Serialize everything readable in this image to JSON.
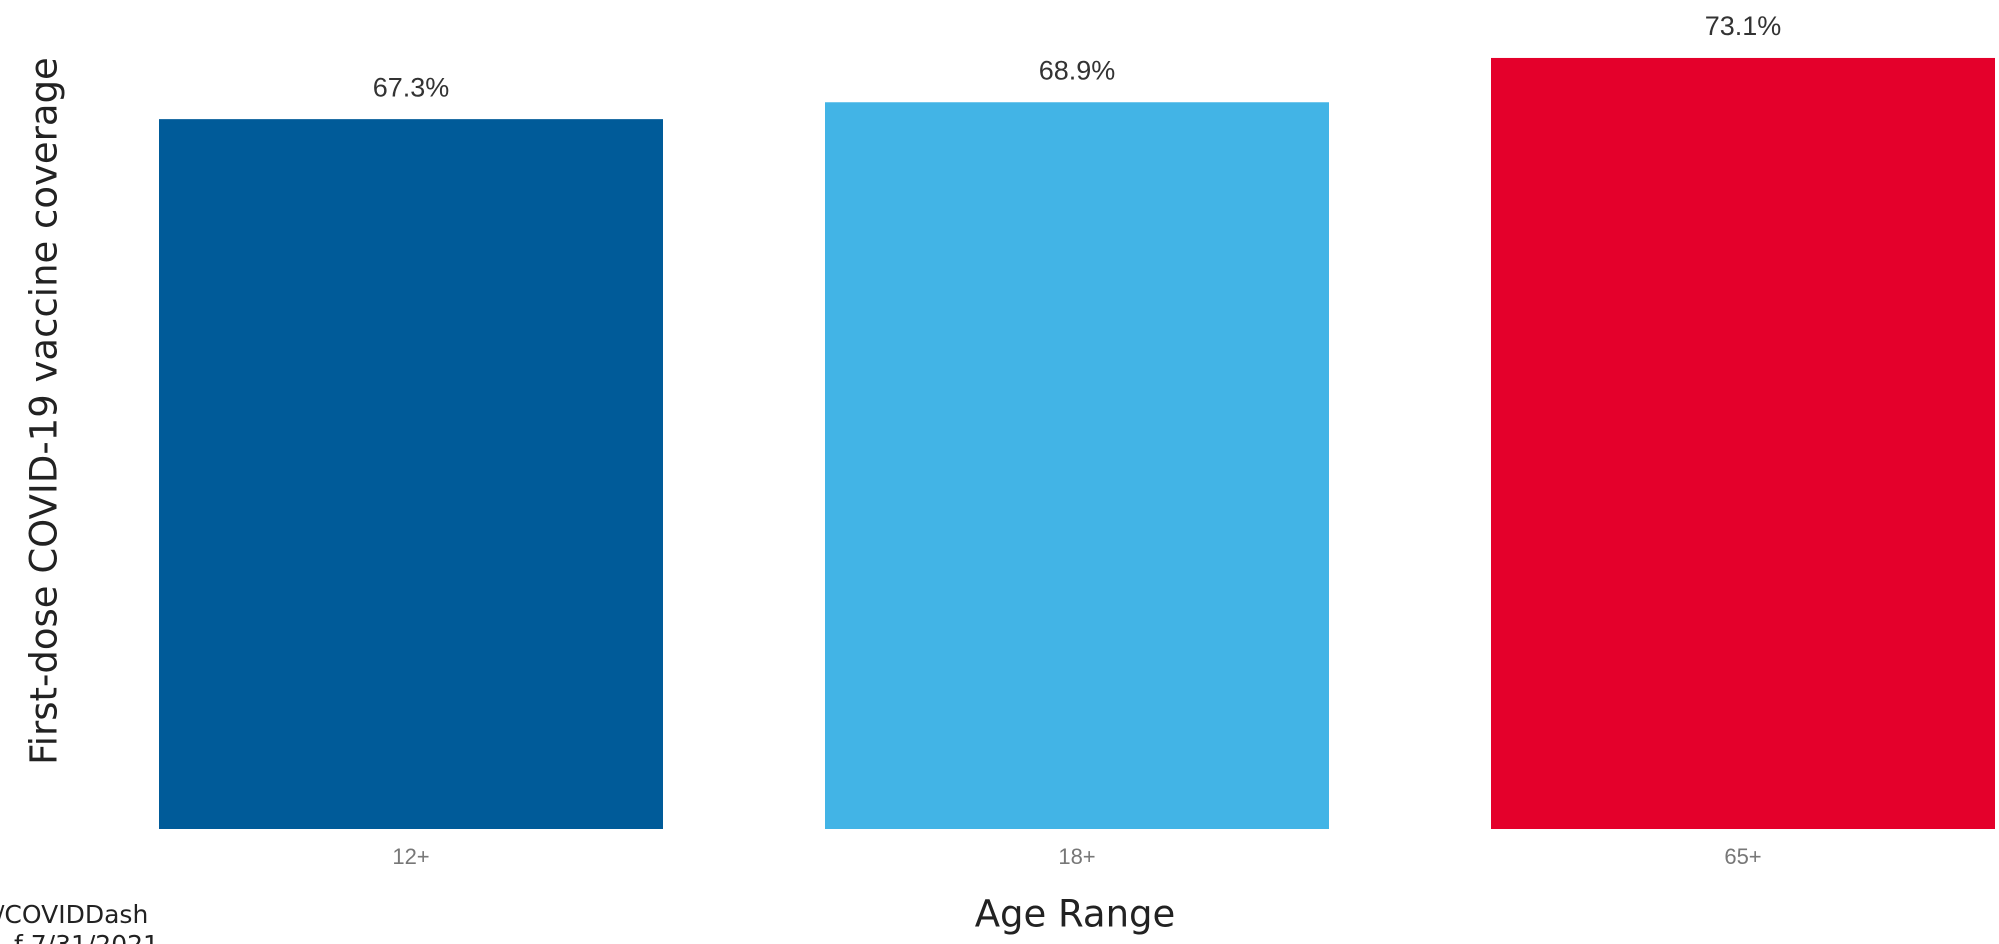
{
  "chart_data": {
    "type": "bar",
    "y_label": "First-dose COVID-19 vaccine coverage",
    "x_label": "Age Range",
    "footnote": [
      "/COVIDDash",
      "f 7/31/2021"
    ],
    "categories": [
      "12+",
      "18+",
      "65+"
    ],
    "values": [
      67.3,
      68.9,
      73.1
    ],
    "value_labels": [
      "67.3%",
      "68.9%",
      "73.1%"
    ],
    "colors": [
      "#005b99",
      "#42b4e6",
      "#e4002b"
    ],
    "ylim": [
      0,
      78.5
    ],
    "grid": false
  }
}
